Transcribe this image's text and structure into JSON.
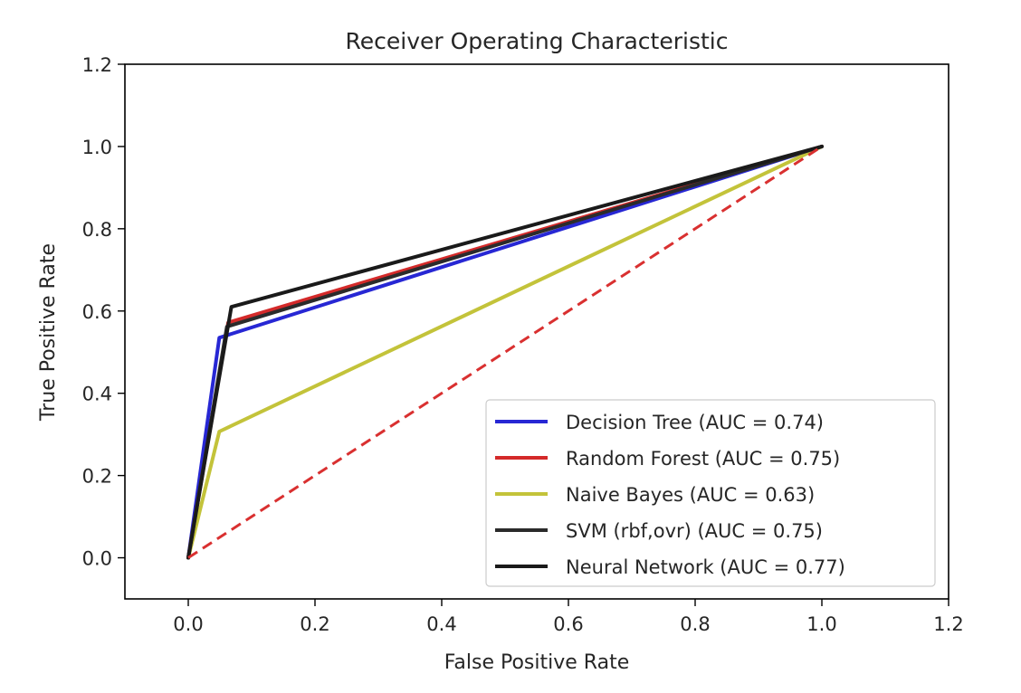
{
  "chart_data": {
    "type": "line",
    "title": "Receiver Operating Characteristic",
    "xlabel": "False Positive Rate",
    "ylabel": "True Positive Rate",
    "xlim": [
      -0.1,
      1.2
    ],
    "ylim": [
      -0.1,
      1.2
    ],
    "xticks": [
      "0.0",
      "0.2",
      "0.4",
      "0.6",
      "0.8",
      "1.0",
      "1.2"
    ],
    "yticks": [
      "0.0",
      "0.2",
      "0.4",
      "0.6",
      "0.8",
      "1.0",
      "1.2"
    ],
    "grid": false,
    "legend_position": "lower-right",
    "series": [
      {
        "name": "Decision Tree (AUC = 0.74)",
        "color": "#2727d4",
        "dashed": false,
        "x": [
          0.0,
          0.049,
          1.0
        ],
        "y": [
          0.0,
          0.535,
          1.0
        ]
      },
      {
        "name": "Random Forest (AUC = 0.75)",
        "color": "#d42a2a",
        "dashed": false,
        "x": [
          0.0,
          0.063,
          1.0
        ],
        "y": [
          0.0,
          0.572,
          1.0
        ]
      },
      {
        "name": "Naive Bayes (AUC = 0.63)",
        "color": "#c3c33a",
        "dashed": false,
        "x": [
          0.0,
          0.049,
          1.0
        ],
        "y": [
          0.0,
          0.307,
          1.0
        ]
      },
      {
        "name": "SVM (rbf,ovr) (AUC = 0.75)",
        "color": "#2b2b2b",
        "dashed": false,
        "x": [
          0.0,
          0.061,
          1.0
        ],
        "y": [
          0.0,
          0.562,
          1.0
        ]
      },
      {
        "name": "Neural Network (AUC = 0.77)",
        "color": "#1a1a1a",
        "dashed": false,
        "x": [
          0.0,
          0.068,
          1.0
        ],
        "y": [
          0.0,
          0.61,
          1.0
        ]
      },
      {
        "name": "",
        "color": "#d93030",
        "dashed": true,
        "x": [
          0.0,
          1.0
        ],
        "y": [
          0.0,
          1.0
        ]
      }
    ]
  }
}
